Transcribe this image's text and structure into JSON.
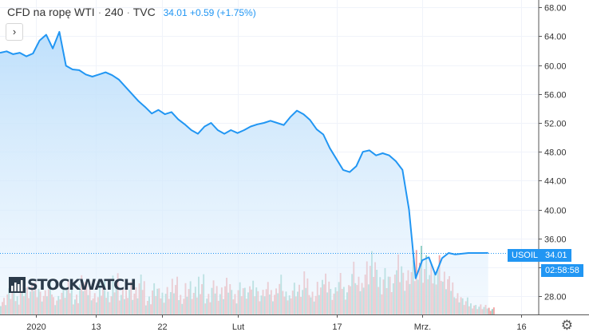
{
  "header": {
    "title": "CFD na ropę WTI",
    "interval": "240",
    "source": "TVC",
    "separator": "·",
    "price": "34.01",
    "change": "+0.59 (+1.75%)"
  },
  "collapse_button": {
    "label": "›"
  },
  "watermark": {
    "text": "STOCKWATCH"
  },
  "price_tags": {
    "symbol": "USOIL",
    "last": "34.01",
    "countdown": "02:58:58"
  },
  "settings": {
    "icon": "gear-icon",
    "glyph": "⚙"
  },
  "colors": {
    "line": "#2196f3",
    "area_top": "#bbdefb",
    "area_bottom": "#e8f3fd",
    "vol_up": "#8fcfc4",
    "vol_down": "#f3a4a4",
    "grid": "#f0f3fa",
    "axis": "#555555"
  },
  "chart_data": {
    "type": "area",
    "title": "CFD na ropę WTI · 240 · TVC",
    "xlabel": "",
    "ylabel": "",
    "ylim": [
      25.5,
      69.0
    ],
    "xlim": [
      0,
      75
    ],
    "yticks": [
      "28.00",
      "32.00",
      "36.00",
      "40.00",
      "44.00",
      "48.00",
      "52.00",
      "56.00",
      "60.00",
      "64.00",
      "68.00"
    ],
    "xticks": [
      {
        "label": "2020",
        "x": 5.5
      },
      {
        "label": "13",
        "x": 14.5
      },
      {
        "label": "22",
        "x": 24.5
      },
      {
        "label": "Lut",
        "x": 36
      },
      {
        "label": "17",
        "x": 51
      },
      {
        "label": "Mrz.",
        "x": 64
      },
      {
        "label": "16",
        "x": 79
      }
    ],
    "series": [
      {
        "name": "USOIL",
        "x": [
          0,
          1,
          2,
          3,
          4,
          5,
          6,
          7,
          8,
          9,
          10,
          11,
          12,
          13,
          14,
          15,
          16,
          17,
          18,
          19,
          20,
          21,
          22,
          23,
          24,
          25,
          26,
          27,
          28,
          29,
          30,
          31,
          32,
          33,
          34,
          35,
          36,
          37,
          38,
          39,
          40,
          41,
          42,
          43,
          44,
          45,
          46,
          47,
          48,
          49,
          50,
          51,
          52,
          53,
          54,
          55,
          56,
          57,
          58,
          59,
          60,
          61,
          62,
          63,
          64,
          65,
          66,
          67,
          68,
          69,
          70,
          71,
          72,
          73,
          74
        ],
        "values": [
          61.7,
          61.9,
          61.5,
          61.7,
          61.2,
          61.6,
          63.4,
          64.2,
          62.3,
          64.6,
          59.9,
          59.4,
          59.3,
          58.7,
          58.4,
          58.7,
          59.0,
          58.6,
          58.0,
          57.0,
          56.0,
          55.0,
          54.2,
          53.3,
          53.8,
          53.2,
          53.5,
          52.5,
          51.8,
          51.0,
          50.5,
          51.5,
          52.0,
          51.0,
          50.5,
          51.0,
          50.6,
          51.0,
          51.5,
          51.8,
          52.0,
          52.3,
          52.0,
          51.7,
          52.8,
          53.7,
          53.2,
          52.4,
          51.1,
          50.4,
          48.5,
          47.0,
          45.5,
          45.2,
          46.0,
          48.0,
          48.2,
          47.5,
          47.8,
          47.5,
          46.7,
          45.5,
          40.0,
          30.5,
          33.0,
          33.4,
          31.0,
          33.3,
          34.0,
          33.8,
          33.9,
          34.0,
          34.0,
          34.0,
          34.01
        ]
      }
    ],
    "volumes": [
      3.5,
      5.2,
      4.1,
      6.8,
      5.5,
      7.2,
      4.8,
      6.1,
      3.9,
      5.6,
      6.5,
      4.2,
      7.8,
      5.9,
      4.5,
      6.3,
      5.1,
      8.2,
      4.7,
      6.9,
      5.4,
      7.5,
      3.8,
      6.2,
      4.9,
      5.8,
      7.1,
      4.4,
      6.6,
      5.2,
      8.5,
      4.1,
      6.4,
      5.7,
      7.3,
      4.6,
      6.8,
      5.3,
      7.6,
      4.9,
      6.1,
      5.5,
      7.9,
      4.3,
      6.7,
      5.9,
      8.1,
      4.8,
      6.5,
      9.2,
      5.4,
      7.8,
      6.2,
      10.5,
      7.1,
      11.2,
      12.6,
      8.4,
      9.8,
      7.5,
      13.5,
      8.8,
      10.2,
      14.5,
      11.8,
      9.5,
      12.5,
      8.5,
      7.2,
      4.5,
      3.2,
      2.5,
      2.0,
      1.8,
      1.5
    ],
    "volume_units": "relative (1–15)",
    "last_value": 34.01,
    "legend": "none"
  }
}
